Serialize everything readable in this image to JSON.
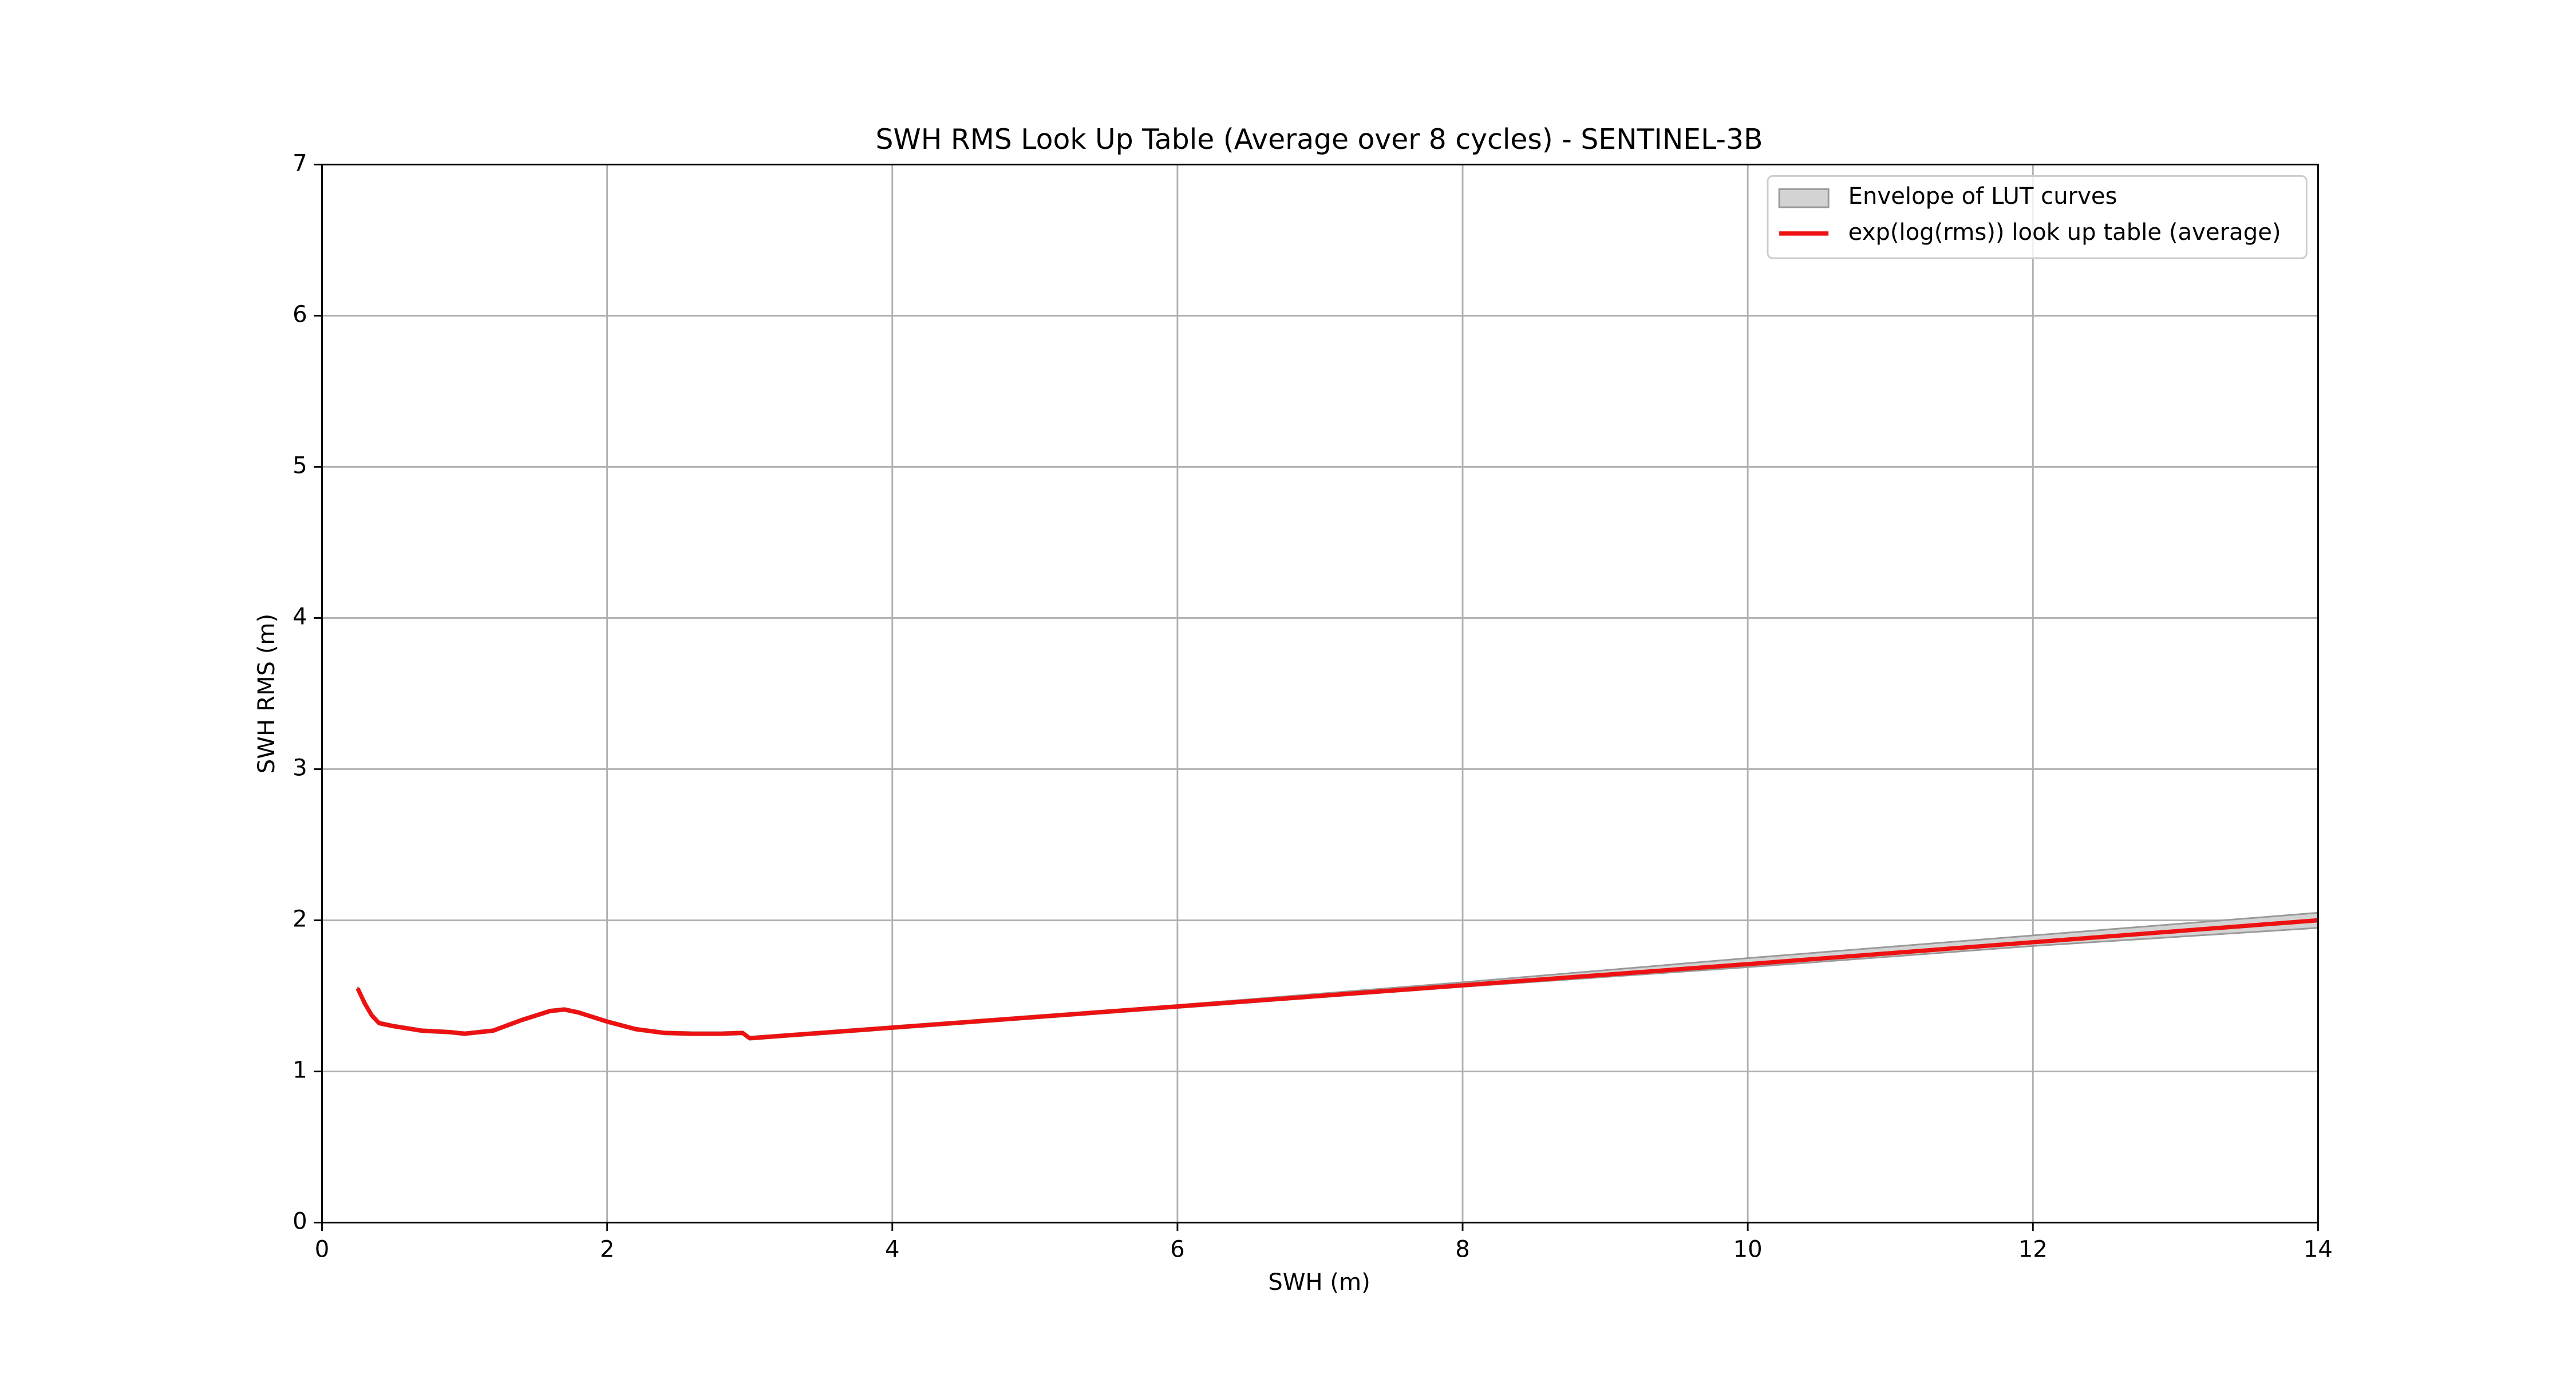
{
  "chart_data": {
    "type": "line",
    "title": "SWH RMS Look Up Table (Average over 8 cycles) - SENTINEL-3B",
    "x_label": "SWH (m)",
    "y_label": "SWH RMS (m)",
    "xlim": [
      0,
      14
    ],
    "ylim": [
      0,
      7
    ],
    "xticks": [
      0,
      2,
      4,
      6,
      8,
      10,
      12,
      14
    ],
    "yticks": [
      0,
      1,
      2,
      3,
      4,
      5,
      6,
      7
    ],
    "grid": true,
    "legend": "upper right",
    "x": [
      0.25,
      0.3,
      0.35,
      0.4,
      0.5,
      0.7,
      0.9,
      1.0,
      1.2,
      1.4,
      1.6,
      1.7,
      1.8,
      2.0,
      2.2,
      2.4,
      2.6,
      2.8,
      2.95,
      3.0,
      4,
      6,
      8,
      10,
      12,
      14
    ],
    "envelope": {
      "name": "Envelope of LUT curves",
      "color": "#d3d3d3",
      "edge_color": "#999999",
      "lower": [
        1.54,
        1.44,
        1.36,
        1.31,
        1.29,
        1.26,
        1.25,
        1.24,
        1.26,
        1.33,
        1.39,
        1.4,
        1.38,
        1.32,
        1.27,
        1.245,
        1.24,
        1.24,
        1.245,
        1.21,
        1.28,
        1.42,
        1.56,
        1.69,
        1.83,
        1.95
      ],
      "upper": [
        1.56,
        1.46,
        1.38,
        1.33,
        1.31,
        1.28,
        1.27,
        1.26,
        1.28,
        1.35,
        1.41,
        1.42,
        1.4,
        1.34,
        1.29,
        1.265,
        1.26,
        1.26,
        1.265,
        1.23,
        1.3,
        1.44,
        1.59,
        1.75,
        1.9,
        2.05
      ]
    },
    "series": [
      {
        "name": "exp(log(rms)) look up table (average)",
        "color": "#ee1111",
        "values": [
          1.55,
          1.45,
          1.37,
          1.32,
          1.3,
          1.27,
          1.26,
          1.25,
          1.27,
          1.34,
          1.4,
          1.41,
          1.39,
          1.33,
          1.28,
          1.255,
          1.25,
          1.25,
          1.255,
          1.22,
          1.29,
          1.43,
          1.57,
          1.71,
          1.855,
          2.0
        ]
      }
    ]
  }
}
